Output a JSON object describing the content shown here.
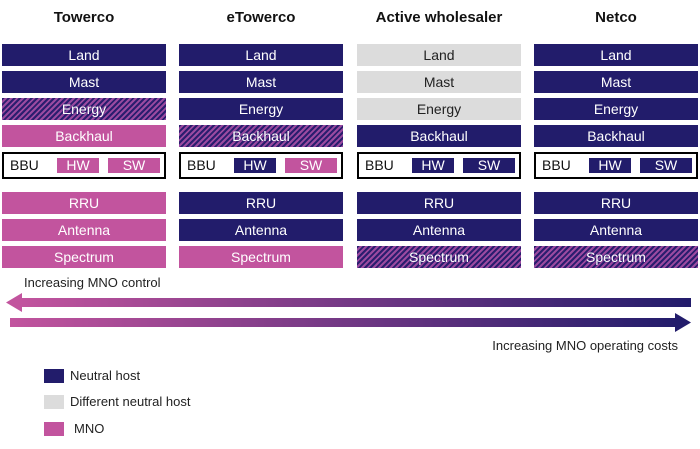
{
  "columns": [
    {
      "title": "Towerco",
      "layers": [
        {
          "label": "Land",
          "style": "neutral"
        },
        {
          "label": "Mast",
          "style": "neutral"
        },
        {
          "label": "Energy",
          "style": "hatched"
        },
        {
          "label": "Backhaul",
          "style": "mno"
        },
        {
          "label": "RRU",
          "style": "mno"
        },
        {
          "label": "Antenna",
          "style": "mno"
        },
        {
          "label": "Spectrum",
          "style": "mno"
        }
      ],
      "bbu": {
        "label": "BBU",
        "hw": "HW",
        "hw_style": "mno",
        "sw": "SW",
        "sw_style": "mno"
      }
    },
    {
      "title": "eTowerco",
      "layers": [
        {
          "label": "Land",
          "style": "neutral"
        },
        {
          "label": "Mast",
          "style": "neutral"
        },
        {
          "label": "Energy",
          "style": "neutral"
        },
        {
          "label": "Backhaul",
          "style": "hatched"
        },
        {
          "label": "RRU",
          "style": "neutral"
        },
        {
          "label": "Antenna",
          "style": "neutral"
        },
        {
          "label": "Spectrum",
          "style": "mno"
        }
      ],
      "bbu": {
        "label": "BBU",
        "hw": "HW",
        "hw_style": "neutral",
        "sw": "SW",
        "sw_style": "mno"
      }
    },
    {
      "title": "Active wholesaler",
      "layers": [
        {
          "label": "Land",
          "style": "different"
        },
        {
          "label": "Mast",
          "style": "different"
        },
        {
          "label": "Energy",
          "style": "different"
        },
        {
          "label": "Backhaul",
          "style": "neutral"
        },
        {
          "label": "RRU",
          "style": "neutral"
        },
        {
          "label": "Antenna",
          "style": "neutral"
        },
        {
          "label": "Spectrum",
          "style": "hatched"
        }
      ],
      "bbu": {
        "label": "BBU",
        "hw": "HW",
        "hw_style": "neutral",
        "sw": "SW",
        "sw_style": "neutral"
      }
    },
    {
      "title": "Netco",
      "layers": [
        {
          "label": "Land",
          "style": "neutral"
        },
        {
          "label": "Mast",
          "style": "neutral"
        },
        {
          "label": "Energy",
          "style": "neutral"
        },
        {
          "label": "Backhaul",
          "style": "neutral"
        },
        {
          "label": "RRU",
          "style": "neutral"
        },
        {
          "label": "Antenna",
          "style": "neutral"
        },
        {
          "label": "Spectrum",
          "style": "hatched"
        }
      ],
      "bbu": {
        "label": "BBU",
        "hw": "HW",
        "hw_style": "neutral",
        "sw": "SW",
        "sw_style": "neutral"
      }
    }
  ],
  "arrows": {
    "control_label": "Increasing MNO control",
    "costs_label": "Increasing MNO operating costs"
  },
  "legend": [
    {
      "label": "Neutral host",
      "style": "neutral"
    },
    {
      "label": "Different neutral host",
      "style": "different"
    },
    {
      "label": "MNO",
      "style": "mno"
    }
  ],
  "colors": {
    "neutral_host": "#221c6b",
    "different_neutral_host": "#dcdcdc",
    "mno": "#c2549e"
  }
}
